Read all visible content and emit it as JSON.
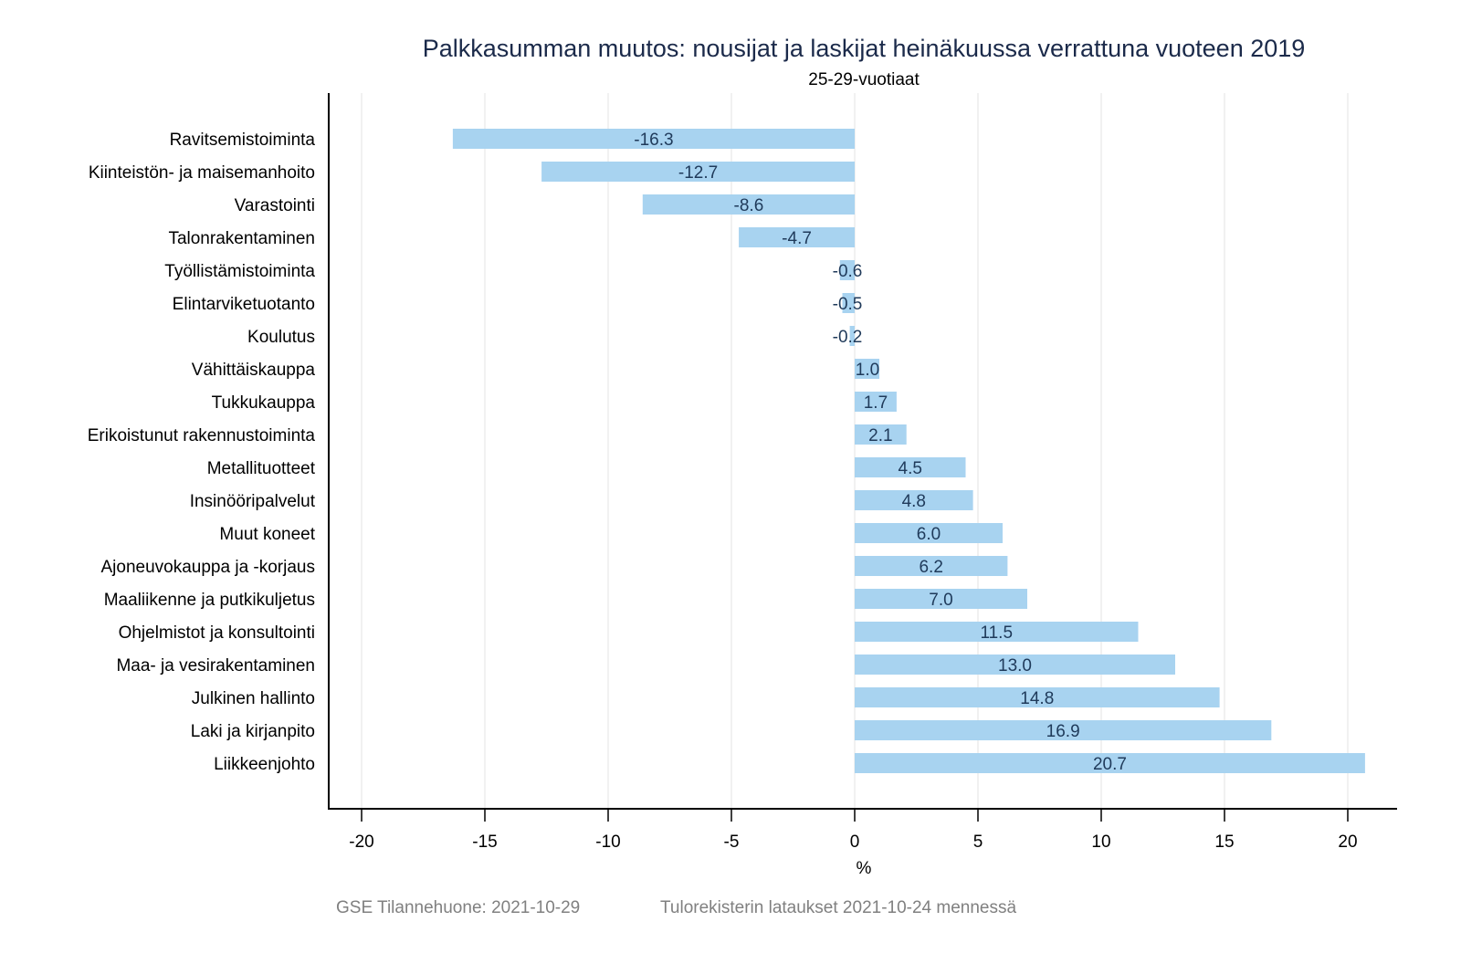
{
  "chart_data": {
    "type": "bar",
    "orientation": "horizontal",
    "title": "Palkkasumman muutos: nousijat ja laskijat heinäkuussa verrattuna vuoteen 2019",
    "subtitle": "25-29-vuotiaat",
    "xlabel": "%",
    "ylabel": "",
    "xlim": [
      -21.5,
      21.8
    ],
    "xticks": [
      -20,
      -15,
      -10,
      -5,
      0,
      5,
      10,
      15,
      20
    ],
    "xtick_labels": [
      "-20",
      "-15",
      "-10",
      "-5",
      "0",
      "5",
      "10",
      "15",
      "20"
    ],
    "grid": "vertical",
    "categories": [
      "Ravitsemistoiminta",
      "Kiinteistön- ja maisemanhoito",
      "Varastointi",
      "Talonrakentaminen",
      "Työllistämistoiminta",
      "Elintarviketuotanto",
      "Koulutus",
      "Vähittäiskauppa",
      "Tukkukauppa",
      "Erikoistunut rakennustoiminta",
      "Metallituotteet",
      "Insinööripalvelut",
      "Muut koneet",
      "Ajoneuvokauppa ja -korjaus",
      "Maaliikenne ja putkikuljetus",
      "Ohjelmistot ja konsultointi",
      "Maa- ja vesirakentaminen",
      "Julkinen hallinto",
      "Laki ja kirjanpito",
      "Liikkeenjohto"
    ],
    "values": [
      -16.3,
      -12.7,
      -8.6,
      -4.7,
      -0.6,
      -0.5,
      -0.2,
      1.0,
      1.7,
      2.1,
      4.5,
      4.8,
      6.0,
      6.2,
      7.0,
      11.5,
      13.0,
      14.8,
      16.9,
      20.7
    ],
    "value_labels": [
      "-16.3",
      "-12.7",
      "-8.6",
      "-4.7",
      "-0.6",
      "-0.5",
      "-0.2",
      "1.0",
      "1.7",
      "2.1",
      "4.5",
      "4.8",
      "6.0",
      "6.2",
      "7.0",
      "11.5",
      "13.0",
      "14.8",
      "16.9",
      "20.7"
    ],
    "bar_color": "#a8d3f0",
    "grid_color": "#e3e3e3"
  },
  "footer": {
    "source": "GSE Tilannehuone: 2021-10-29",
    "note": "Tulorekisterin lataukset 2021-10-24 mennessä"
  }
}
